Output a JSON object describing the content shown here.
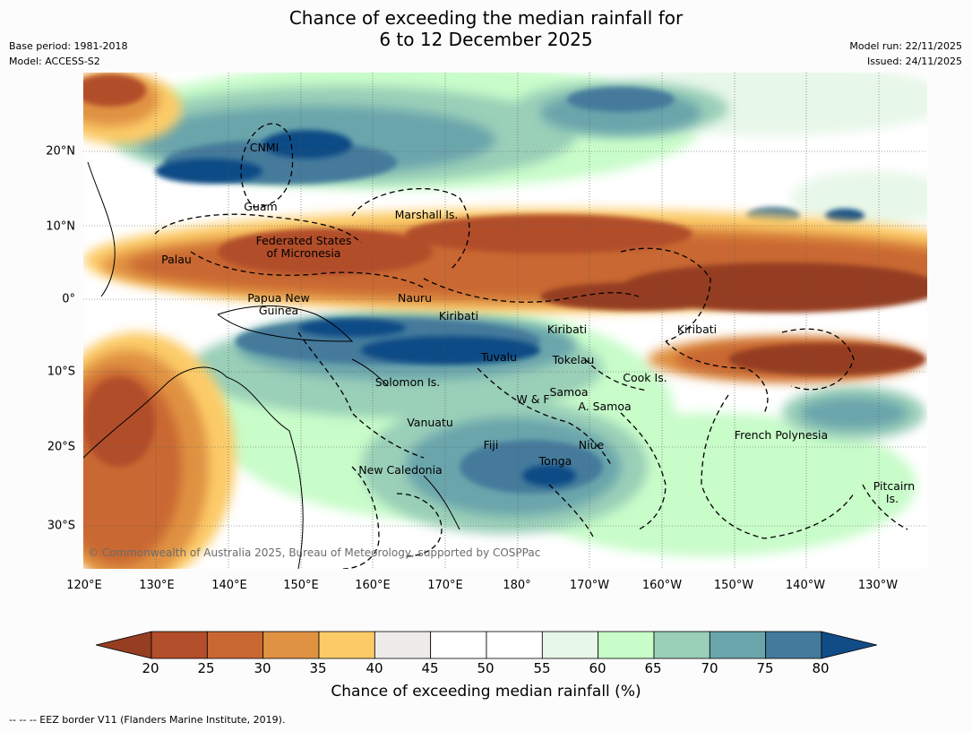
{
  "title": {
    "line1": "Chance of exceeding the median rainfall for",
    "line2": "6 to 12 December 2025"
  },
  "meta": {
    "base_period": "Base period: 1981-2018",
    "model": "Model: ACCESS-S2",
    "model_run": "Model run: 22/11/2025",
    "issued": "Issued: 24/11/2025"
  },
  "map": {
    "lon_ticks": [
      "120°E",
      "130°E",
      "140°E",
      "150°E",
      "160°E",
      "170°E",
      "180°",
      "170°W",
      "160°W",
      "150°W",
      "140°W",
      "130°W"
    ],
    "lat_ticks": [
      "20°N",
      "10°N",
      "0°",
      "10°S",
      "20°S",
      "30°S"
    ],
    "region_labels": {
      "cnmi": "CNMI",
      "guam": "Guam",
      "marshall": "Marshall Is.",
      "fsm_1": "Federated States",
      "fsm_2": "of Micronesia",
      "palau": "Palau",
      "png_1": "Papua New",
      "png_2": "Guinea",
      "nauru": "Nauru",
      "kiribati_west": "Kiribati",
      "kiribati_central": "Kiribati",
      "kiribati_east": "Kiribati",
      "tuvalu": "Tuvalu",
      "tokelau": "Tokelau",
      "cook": "Cook Is.",
      "solomon": "Solomon Is.",
      "samoa": "Samoa",
      "wf": "W & F",
      "asamoa": "A. Samoa",
      "vanuatu": "Vanuatu",
      "fiji": "Fiji",
      "niue": "Niue",
      "tonga": "Tonga",
      "french_polynesia": "French Polynesia",
      "new_caledonia": "New Caledonia",
      "pitcairn_1": "Pitcairn",
      "pitcairn_2": "Is."
    },
    "copyright": "© Commonwealth of Australia 2025, Bureau of Meteorology, supported by COSPPac"
  },
  "colorbar": {
    "title": "Chance of exceeding median rainfall (%)",
    "labels": [
      "20",
      "25",
      "30",
      "35",
      "40",
      "45",
      "50",
      "55",
      "60",
      "65",
      "70",
      "75",
      "80"
    ],
    "low_color": "#953e22",
    "high_color": "#104c86",
    "colors": [
      "#b24e2a",
      "#c96733",
      "#e09243",
      "#fccb67",
      "#eeece8",
      "#ffffff",
      "#ffffff",
      "#e7f7e8",
      "#c8fcc9",
      "#9acfb8",
      "#6ba5ac",
      "#447a9b"
    ]
  },
  "footer": "--  --  -- EEZ border V11 (Flanders Marine Institute, 2019)."
}
